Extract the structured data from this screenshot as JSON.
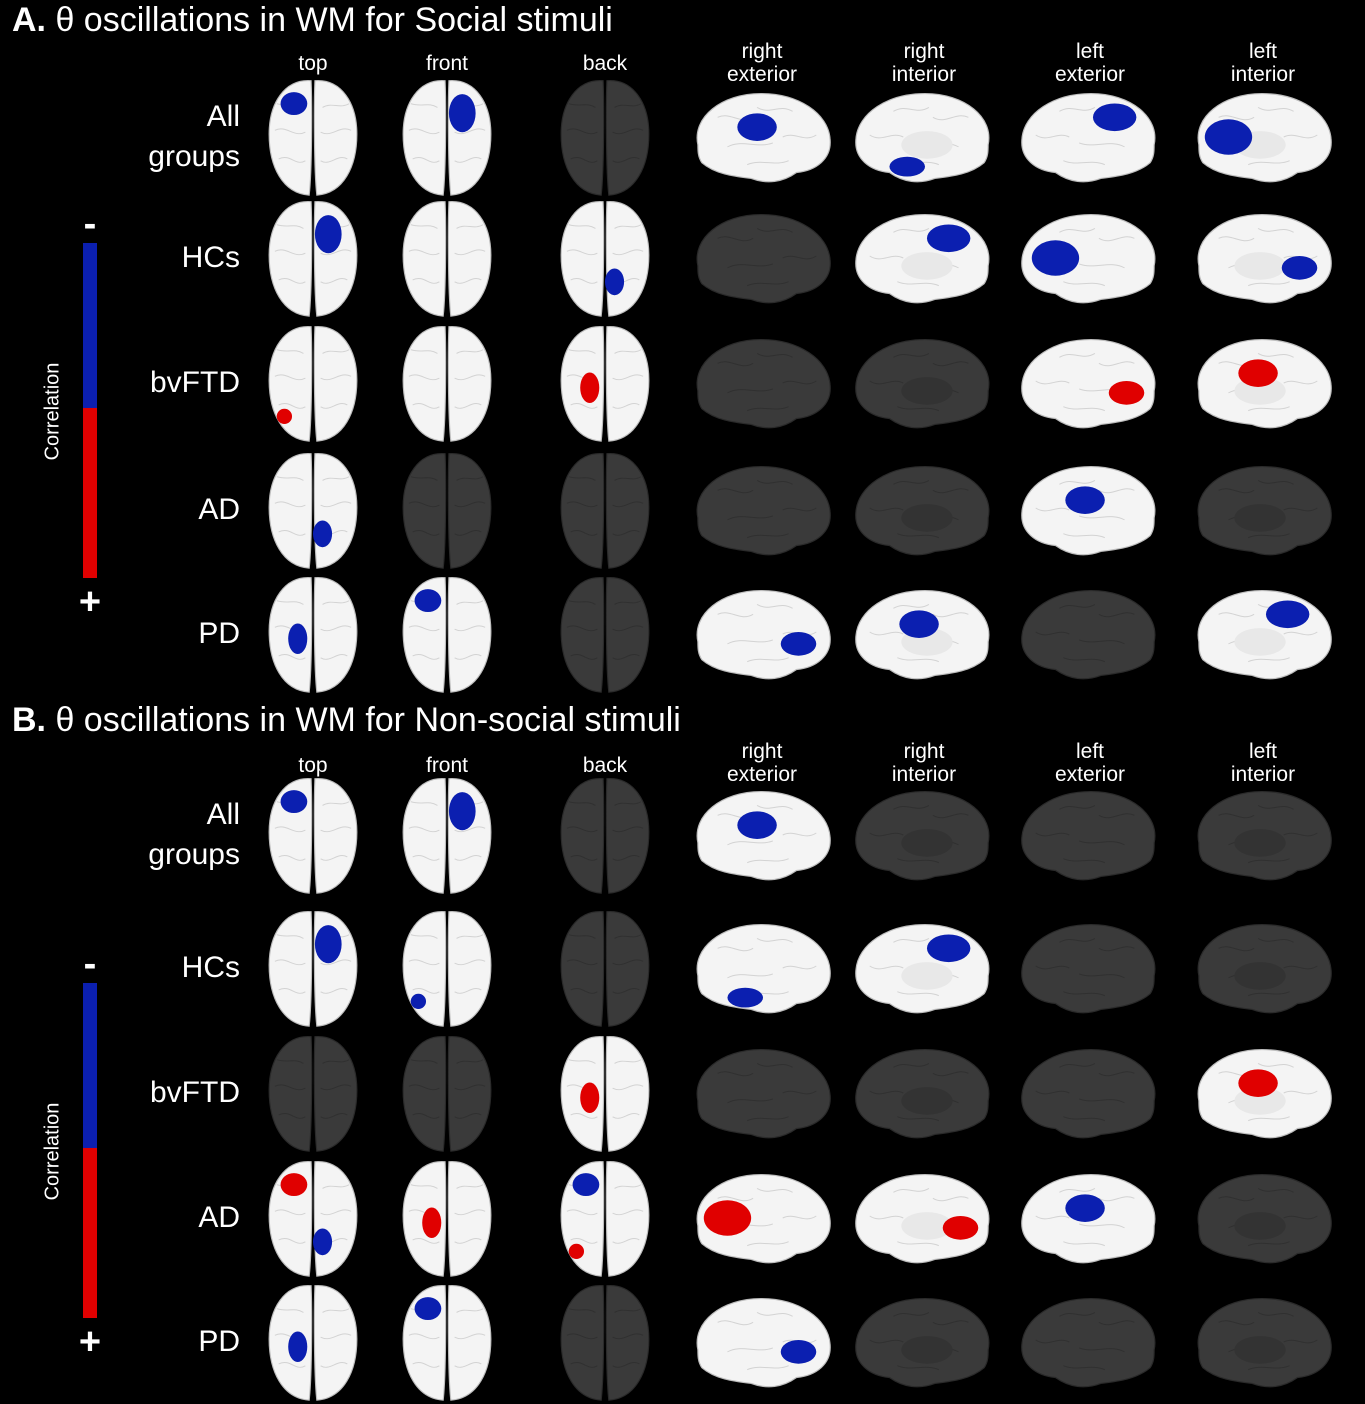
{
  "colors": {
    "negative": "#0b1fb0",
    "positive": "#e00000",
    "active_brain": "#f4f4f4",
    "inactive_brain": "#3a3a3a",
    "background": "#000000"
  },
  "panels": [
    {
      "letter": "A.",
      "title": "θ oscillations in WM for Social stimuli",
      "colorbar": {
        "minus": "-",
        "plus": "+",
        "label": "Correlation"
      },
      "columns": [
        {
          "id": "top",
          "label": "top"
        },
        {
          "id": "front",
          "label": "front"
        },
        {
          "id": "back",
          "label": "back"
        },
        {
          "id": "right-exterior",
          "label": "right\nexterior"
        },
        {
          "id": "right-interior",
          "label": "right\ninterior"
        },
        {
          "id": "left-exterior",
          "label": "left\nexterior"
        },
        {
          "id": "left-interior",
          "label": "left\ninterior"
        }
      ],
      "rows": [
        {
          "label": "All\ngroups",
          "cells": [
            "blue",
            "blue",
            "none",
            "blue",
            "blue",
            "blue",
            "blue"
          ]
        },
        {
          "label": "HCs",
          "cells": [
            "blue",
            "white",
            "blue",
            "none",
            "blue",
            "blue",
            "blue"
          ]
        },
        {
          "label": "bvFTD",
          "cells": [
            "red",
            "white",
            "red",
            "none",
            "none",
            "red",
            "red"
          ]
        },
        {
          "label": "AD",
          "cells": [
            "blue",
            "none",
            "none",
            "none",
            "none",
            "blue",
            "none"
          ]
        },
        {
          "label": "PD",
          "cells": [
            "blue",
            "blue",
            "none",
            "blue",
            "blue",
            "none",
            "blue"
          ]
        }
      ]
    },
    {
      "letter": "B.",
      "title": "θ oscillations in WM for Non-social stimuli",
      "colorbar": {
        "minus": "-",
        "plus": "+",
        "label": "Correlation"
      },
      "columns": [
        {
          "id": "top",
          "label": "top"
        },
        {
          "id": "front",
          "label": "front"
        },
        {
          "id": "back",
          "label": "back"
        },
        {
          "id": "right-exterior",
          "label": "right\nexterior"
        },
        {
          "id": "right-interior",
          "label": "right\ninterior"
        },
        {
          "id": "left-exterior",
          "label": "left\nexterior"
        },
        {
          "id": "left-interior",
          "label": "left\ninterior"
        }
      ],
      "rows": [
        {
          "label": "All\ngroups",
          "cells": [
            "blue",
            "blue",
            "none",
            "blue",
            "none",
            "none",
            "none"
          ]
        },
        {
          "label": "HCs",
          "cells": [
            "blue",
            "blue",
            "none",
            "blue",
            "blue",
            "none",
            "none"
          ]
        },
        {
          "label": "bvFTD",
          "cells": [
            "none",
            "none",
            "red",
            "none",
            "none",
            "none",
            "red"
          ]
        },
        {
          "label": "AD",
          "cells": [
            "blue+red",
            "red",
            "blue+red",
            "red",
            "red",
            "blue",
            "none"
          ]
        },
        {
          "label": "PD",
          "cells": [
            "blue",
            "blue",
            "none",
            "blue",
            "none",
            "none",
            "none"
          ]
        }
      ]
    }
  ]
}
